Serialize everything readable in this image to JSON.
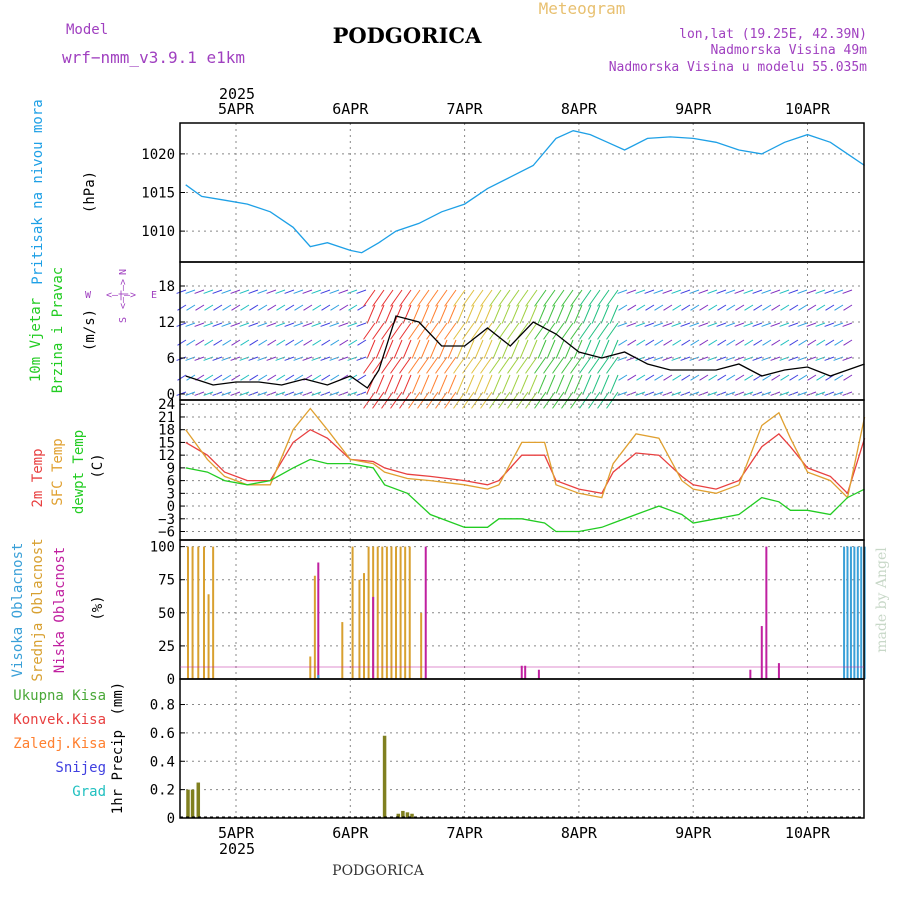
{
  "header": {
    "model_label": "Model",
    "model_name": "wrf−nmm_v3.9.1 e1km",
    "title": "PODGORICA",
    "subtitle": "Meteogram",
    "coords": "lon,lat (19.25E, 42.39N)",
    "elevation": "Nadmorska Visina 49m",
    "model_elevation": "Nadmorska Visina u modelu 55.035m",
    "footer_title": "PODGORICA",
    "watermark": "made by Angel"
  },
  "colors": {
    "pressure": "#1ea0e6",
    "temp2m": "#e84040",
    "sfc_temp": "#e0a030",
    "dewpoint": "#22cc22",
    "high_cloud": "#3aa0d8",
    "mid_cloud": "#d8a030",
    "low_cloud": "#c020a0",
    "total_precip": "#4aa838",
    "conv_precip": "#e84040",
    "freezing_precip": "#ff8030",
    "snow": "#4040e0",
    "hail": "#20c0c0",
    "label_purple": "#a040c0"
  },
  "x_axis": {
    "year": "2025",
    "ticks": [
      "5APR",
      "6APR",
      "7APR",
      "8APR",
      "9APR",
      "10APR"
    ]
  },
  "legend": {
    "precip": [
      "Ukupna Kisa",
      "Konvek.Kisa",
      "Zaledj.Kisa",
      "Snijeg",
      "Grad"
    ],
    "compass": {
      "n": "N",
      "s": "S",
      "w": "W",
      "e": "E",
      "arrow": "<—|—>"
    }
  },
  "chart_data": [
    {
      "type": "line",
      "panel": "pressure",
      "ylabel": "Pritisak na nivou mora",
      "unit": "(hPa)",
      "ylim": [
        1006,
        1024
      ],
      "yticks": [
        1010,
        1015,
        1020
      ],
      "grid": true,
      "series": [
        {
          "name": "Pritisak na nivou mora",
          "x": [
            4.56,
            4.7,
            4.9,
            5.1,
            5.3,
            5.5,
            5.65,
            5.8,
            6.0,
            6.1,
            6.25,
            6.4,
            6.6,
            6.8,
            7.0,
            7.2,
            7.4,
            7.6,
            7.8,
            7.95,
            8.1,
            8.25,
            8.4,
            8.6,
            8.8,
            9.0,
            9.2,
            9.4,
            9.6,
            9.8,
            10.0,
            10.2,
            10.35,
            10.5
          ],
          "values": [
            1016,
            1014.5,
            1014,
            1013.5,
            1012.5,
            1010.5,
            1008,
            1008.5,
            1007.5,
            1007.2,
            1008.5,
            1010,
            1011,
            1012.5,
            1013.5,
            1015.5,
            1017,
            1018.5,
            1022,
            1023,
            1022.5,
            1021.5,
            1020.5,
            1022,
            1022.2,
            1022,
            1021.5,
            1020.5,
            1020,
            1021.5,
            1022.5,
            1021.5,
            1020,
            1018.5
          ]
        }
      ]
    },
    {
      "type": "line",
      "panel": "wind",
      "ylabel": "10m Vjetar",
      "ylabel2": "Brzina i Pravac",
      "unit": "(m/s)",
      "ylim": [
        -1,
        22
      ],
      "yticks": [
        0,
        6,
        12,
        18
      ],
      "grid": true,
      "series": [
        {
          "name": "wind speed",
          "x": [
            4.56,
            4.8,
            5.0,
            5.2,
            5.4,
            5.6,
            5.8,
            6.0,
            6.15,
            6.25,
            6.4,
            6.6,
            6.8,
            7.0,
            7.2,
            7.4,
            7.6,
            7.8,
            8.0,
            8.2,
            8.4,
            8.6,
            8.8,
            9.0,
            9.2,
            9.4,
            9.6,
            9.8,
            10.0,
            10.2,
            10.5
          ],
          "values": [
            3,
            1.5,
            2,
            2,
            1.5,
            2.5,
            1.5,
            3,
            1,
            4,
            13,
            12,
            8,
            8,
            11,
            8,
            12,
            10,
            7,
            6,
            7,
            5,
            4,
            4,
            4,
            5,
            3,
            4,
            4.5,
            3,
            5
          ]
        }
      ]
    },
    {
      "type": "line",
      "panel": "temperature",
      "ylabel": "2m Temp",
      "ylabel2": "SFC Temp",
      "ylabel3": "dewpt Temp",
      "unit": "(C)",
      "ylim": [
        -8,
        25
      ],
      "yticks": [
        -6,
        -3,
        0,
        3,
        6,
        9,
        12,
        15,
        18,
        21,
        24
      ],
      "grid": true,
      "series": [
        {
          "name": "2m Temp",
          "x": [
            4.56,
            4.75,
            4.9,
            5.1,
            5.3,
            5.5,
            5.65,
            5.8,
            6.0,
            6.2,
            6.3,
            6.5,
            6.7,
            7.0,
            7.2,
            7.3,
            7.5,
            7.7,
            7.8,
            8.0,
            8.2,
            8.3,
            8.5,
            8.7,
            8.9,
            9.0,
            9.2,
            9.4,
            9.6,
            9.75,
            9.85,
            10.0,
            10.2,
            10.35,
            10.5
          ],
          "values": [
            15,
            12,
            8,
            6,
            6,
            15,
            18,
            16,
            11,
            10.5,
            9,
            7.5,
            7,
            6,
            5,
            6,
            12,
            12,
            6,
            4,
            3,
            8,
            12.5,
            12,
            7,
            5,
            4,
            6,
            14,
            17,
            14,
            9,
            7,
            3,
            16
          ]
        },
        {
          "name": "SFC Temp",
          "x": [
            4.56,
            4.75,
            4.9,
            5.1,
            5.3,
            5.5,
            5.65,
            5.8,
            6.0,
            6.2,
            6.3,
            6.5,
            6.7,
            7.0,
            7.2,
            7.3,
            7.5,
            7.7,
            7.8,
            8.0,
            8.2,
            8.3,
            8.5,
            8.7,
            8.9,
            9.0,
            9.2,
            9.4,
            9.6,
            9.75,
            9.85,
            10.0,
            10.2,
            10.35,
            10.5
          ],
          "values": [
            18,
            11,
            7,
            5,
            5,
            18,
            23,
            18,
            11,
            10,
            8,
            6.5,
            6,
            5,
            4,
            5,
            15,
            15,
            5,
            3,
            2,
            10,
            17,
            16,
            6,
            4,
            3,
            5,
            19,
            22,
            16,
            8,
            6,
            2,
            21
          ]
        },
        {
          "name": "dewpt Temp",
          "x": [
            4.56,
            4.75,
            4.9,
            5.1,
            5.3,
            5.5,
            5.65,
            5.8,
            6.0,
            6.2,
            6.3,
            6.5,
            6.7,
            7.0,
            7.2,
            7.3,
            7.5,
            7.7,
            7.8,
            8.0,
            8.2,
            8.3,
            8.5,
            8.7,
            8.9,
            9.0,
            9.2,
            9.4,
            9.6,
            9.75,
            9.85,
            10.0,
            10.2,
            10.35,
            10.5
          ],
          "values": [
            9,
            8,
            6,
            5,
            6,
            9,
            11,
            10,
            10,
            9,
            5,
            3,
            -2,
            -5,
            -5,
            -3,
            -3,
            -4,
            -6,
            -6,
            -5,
            -4,
            -2,
            0,
            -2,
            -4,
            -3,
            -2,
            2,
            1,
            -1,
            -1,
            -2,
            2,
            4
          ]
        }
      ]
    },
    {
      "type": "bar",
      "panel": "clouds",
      "ylabel": "Visoka Oblacnost",
      "ylabel2": "Srednja Oblacnost",
      "ylabel3": "Niska Oblacnost",
      "unit": "(%)",
      "ylim": [
        0,
        105
      ],
      "yticks": [
        0,
        25,
        50,
        75,
        100
      ],
      "grid": true,
      "series": [
        {
          "name": "Srednja Oblacnost",
          "x": [
            4.58,
            4.62,
            4.67,
            4.72,
            4.76,
            4.8,
            5.65,
            5.69,
            5.93,
            6.02,
            6.08,
            6.12,
            6.16,
            6.2,
            6.24,
            6.28,
            6.32,
            6.36,
            6.4,
            6.44,
            6.48,
            6.52,
            6.62
          ],
          "values": [
            100,
            100,
            100,
            100,
            64,
            100,
            17,
            78,
            43,
            100,
            75,
            80,
            100,
            100,
            100,
            100,
            100,
            100,
            100,
            100,
            100,
            100,
            50
          ]
        },
        {
          "name": "Niska Oblacnost",
          "x": [
            5.72,
            6.2,
            6.66,
            7.5,
            7.53,
            7.65,
            9.5,
            9.6,
            9.64,
            9.75
          ],
          "values": [
            88,
            62,
            100,
            10,
            10,
            7,
            7,
            40,
            100,
            12
          ]
        },
        {
          "name": "Visoka Oblacnost",
          "x": [
            5.72,
            10.32,
            10.35,
            10.38,
            10.41,
            10.44,
            10.47,
            10.5
          ],
          "values": [
            3,
            100,
            100,
            100,
            100,
            100,
            100,
            100
          ]
        }
      ]
    },
    {
      "type": "bar",
      "panel": "precip",
      "ylabel": "1hr Precip",
      "unit": "(mm)",
      "ylim": [
        0,
        0.98
      ],
      "yticks": [
        0,
        0.2,
        0.4,
        0.6,
        0.8
      ],
      "ytick_labels": [
        "0",
        "0.2",
        "0.4",
        "0.6",
        "0.8"
      ],
      "grid": true,
      "series": [
        {
          "name": "Ukupna Kisa",
          "x": [
            4.58,
            4.62,
            4.67,
            6.3,
            6.42,
            6.46,
            6.5,
            6.54
          ],
          "values": [
            0.2,
            0.2,
            0.25,
            0.58,
            0.03,
            0.05,
            0.04,
            0.03
          ]
        }
      ]
    }
  ]
}
